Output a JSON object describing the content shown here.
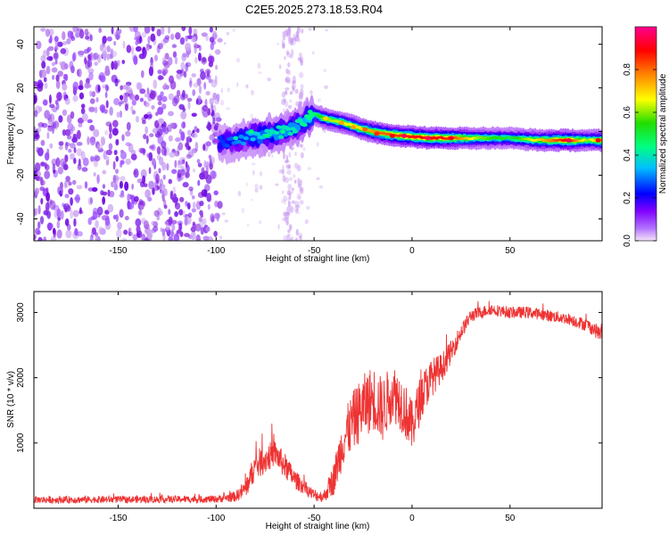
{
  "title": "C2E5.2025.273.18.53.R04",
  "colors": {
    "snr_line": "#ee3333",
    "noise": "#8a2be2",
    "axis": "#000000"
  },
  "chart_data": [
    {
      "type": "heatmap",
      "name": "spectrogram",
      "xlabel": "Height of straight line (km)",
      "ylabel": "Frequency (Hz)",
      "xlim": [
        -193,
        97
      ],
      "ylim": [
        -50,
        48
      ],
      "xticks": [
        -150,
        -100,
        -50,
        0,
        50
      ],
      "xtick_labels": [
        "-150",
        "-100",
        "-50",
        "0",
        "50"
      ],
      "yticks": [
        -40,
        -20,
        0,
        20,
        40
      ],
      "ytick_labels": [
        "-40",
        "-20",
        "0",
        "20",
        "40"
      ],
      "colorbar": {
        "label": "Normalized spectral amplitude",
        "range": [
          0,
          1
        ],
        "ticks": [
          0.0,
          0.2,
          0.4,
          0.6,
          0.8
        ],
        "tick_labels": [
          "0.0",
          "0.2",
          "0.4",
          "0.6",
          "0.8"
        ],
        "stops": [
          "#f4e4f7",
          "#8000ff",
          "#0000ff",
          "#00bfff",
          "#00ff80",
          "#22dd00",
          "#ffff00",
          "#ff8000",
          "#ff0000",
          "#ff0090"
        ]
      },
      "ridge": [
        {
          "x": -97,
          "y": -5,
          "amp": 0.25
        },
        {
          "x": -80,
          "y": -2,
          "amp": 0.35
        },
        {
          "x": -70,
          "y": -1,
          "amp": 0.4
        },
        {
          "x": -60,
          "y": 2,
          "amp": 0.4
        },
        {
          "x": -50,
          "y": 8,
          "amp": 0.45
        },
        {
          "x": -45,
          "y": 6,
          "amp": 0.6
        },
        {
          "x": -35,
          "y": 4,
          "amp": 0.65
        },
        {
          "x": -25,
          "y": 1,
          "amp": 0.7
        },
        {
          "x": -15,
          "y": -1,
          "amp": 0.8
        },
        {
          "x": -5,
          "y": -2,
          "amp": 0.85
        },
        {
          "x": 10,
          "y": -3,
          "amp": 0.9
        },
        {
          "x": 20,
          "y": -3,
          "amp": 0.85
        },
        {
          "x": 35,
          "y": -3,
          "amp": 0.6
        },
        {
          "x": 50,
          "y": -3,
          "amp": 0.5
        },
        {
          "x": 65,
          "y": -4,
          "amp": 0.7
        },
        {
          "x": 80,
          "y": -4,
          "amp": 0.9
        },
        {
          "x": 90,
          "y": -4,
          "amp": 0.6
        },
        {
          "x": 97,
          "y": -4,
          "amp": 0.8
        }
      ],
      "noise_region": {
        "x_from": -193,
        "x_to": -98,
        "y_from": -50,
        "y_to": 48
      }
    },
    {
      "type": "line",
      "name": "snr",
      "xlabel": "Height of straight line (km)",
      "ylabel": "SNR (10 * v/v)",
      "xlim": [
        -193,
        97
      ],
      "ylim": [
        0,
        3320
      ],
      "xticks": [
        -150,
        -100,
        -50,
        0,
        50
      ],
      "xtick_labels": [
        "-150",
        "-100",
        "-50",
        "0",
        "50"
      ],
      "yticks": [
        1000,
        2000,
        3000
      ],
      "ytick_labels": [
        "1000",
        "2000",
        "3000"
      ],
      "envelope": {
        "x": [
          -193,
          -100,
          -90,
          -85,
          -80,
          -75,
          -70,
          -65,
          -60,
          -55,
          -50,
          -45,
          -40,
          -35,
          -30,
          -25,
          -20,
          -15,
          -10,
          -5,
          0,
          5,
          10,
          15,
          20,
          25,
          30,
          40,
          50,
          60,
          70,
          80,
          90,
          97
        ],
        "y": [
          130,
          140,
          180,
          300,
          650,
          750,
          850,
          650,
          450,
          320,
          200,
          180,
          450,
          1050,
          1350,
          1550,
          1700,
          1500,
          1800,
          1600,
          1250,
          1750,
          2000,
          2150,
          2400,
          2700,
          2950,
          3050,
          3000,
          3000,
          2950,
          2900,
          2800,
          2650
        ],
        "spread": [
          110,
          110,
          160,
          300,
          450,
          450,
          400,
          400,
          300,
          220,
          180,
          180,
          500,
          800,
          900,
          1000,
          1000,
          1000,
          900,
          900,
          800,
          700,
          600,
          450,
          350,
          250,
          200,
          180,
          180,
          180,
          180,
          180,
          200,
          250
        ]
      }
    }
  ]
}
